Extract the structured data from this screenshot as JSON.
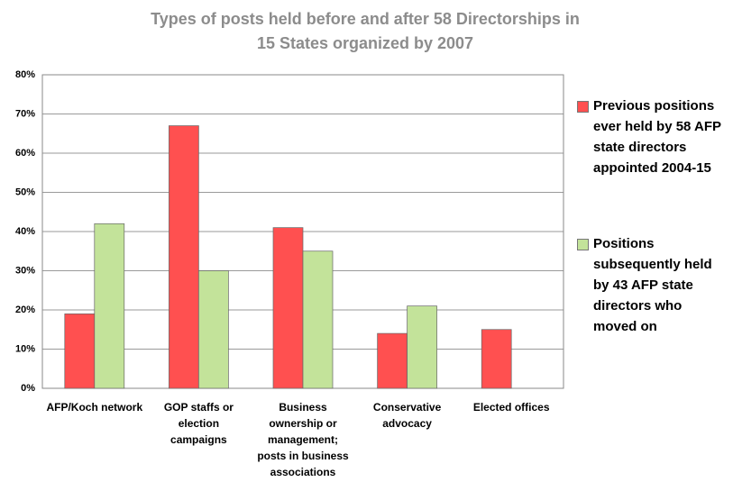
{
  "chart_data": {
    "type": "bar",
    "title": "Types of posts held before and after 58 Directorships in 15 States organized by 2007",
    "categories": [
      "AFP/Koch network",
      "GOP staffs or election campaigns",
      "Business ownership or management; posts in business associations",
      "Conservative advocacy",
      "Elected offices"
    ],
    "series": [
      {
        "name": "Previous positions ever held by 58 AFP state directors appointed 2004-15",
        "color": "#ff5050",
        "values": [
          19,
          67,
          41,
          14,
          15
        ]
      },
      {
        "name": "Positions subsequently held by 43 AFP state directors who moved on",
        "color": "#c3e39a",
        "values": [
          42,
          30,
          35,
          21,
          null
        ]
      }
    ],
    "ylim": [
      0,
      80
    ],
    "yticks": [
      {
        "value": 0,
        "label": "0%"
      },
      {
        "value": 10,
        "label": "10%"
      },
      {
        "value": 20,
        "label": "20%"
      },
      {
        "value": 30,
        "label": "30%"
      },
      {
        "value": 40,
        "label": "40%"
      },
      {
        "value": 50,
        "label": "50%"
      },
      {
        "value": 60,
        "label": "60%"
      },
      {
        "value": 70,
        "label": "70%"
      },
      {
        "value": 80,
        "label": "80%"
      }
    ],
    "grid": true,
    "legend": "right"
  }
}
